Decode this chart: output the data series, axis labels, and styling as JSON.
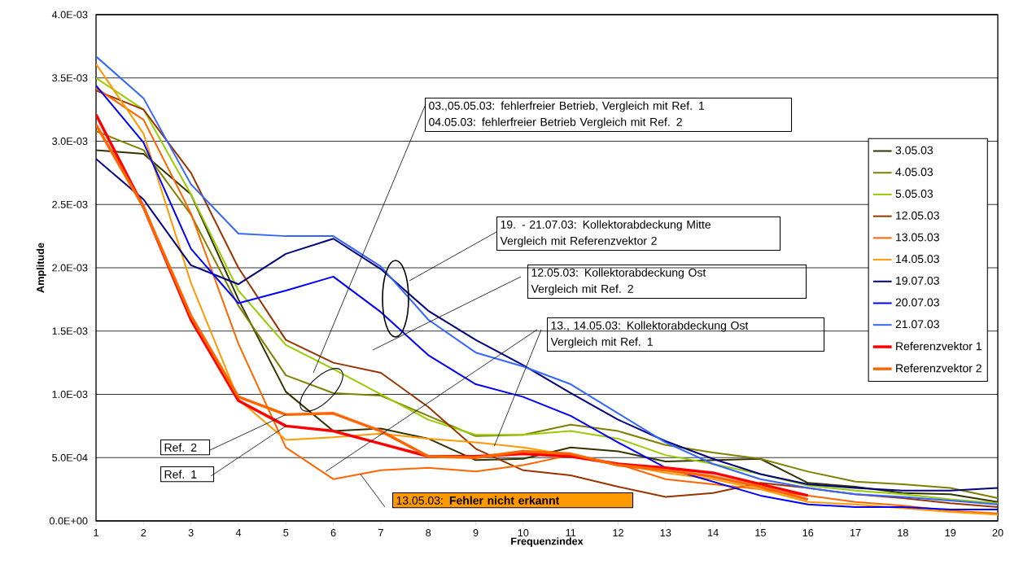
{
  "chart_data": {
    "type": "line",
    "xlabel": "Frequenzindex",
    "ylabel": "Amplitude",
    "x": [
      1,
      2,
      3,
      4,
      5,
      6,
      7,
      8,
      9,
      10,
      11,
      12,
      13,
      14,
      15,
      16,
      17,
      18,
      19,
      20
    ],
    "xlim": [
      1,
      20
    ],
    "xticks": [
      1,
      2,
      3,
      4,
      5,
      6,
      7,
      8,
      9,
      10,
      11,
      12,
      13,
      14,
      15,
      16,
      17,
      18,
      19,
      20
    ],
    "ylim": [
      0,
      0.004
    ],
    "yticks": [
      {
        "value": 0,
        "label": "0.0E+00"
      },
      {
        "value": 0.0005,
        "label": "5.0E-04"
      },
      {
        "value": 0.001,
        "label": "1.0E-03"
      },
      {
        "value": 0.0015,
        "label": "1.5E-03"
      },
      {
        "value": 0.002,
        "label": "2.0E-03"
      },
      {
        "value": 0.0025,
        "label": "2.5E-03"
      },
      {
        "value": 0.003,
        "label": "3.0E-03"
      },
      {
        "value": 0.0035,
        "label": "3.5E-03"
      },
      {
        "value": 0.004,
        "label": "4.0E-03"
      }
    ],
    "grid": "y",
    "legend": "right",
    "series": [
      {
        "name": "3.05.03",
        "color": "#333300",
        "values": [
          0.00293,
          0.0029,
          0.00258,
          0.00175,
          0.00102,
          0.00071,
          0.00073,
          0.00065,
          0.00048,
          0.00049,
          0.00058,
          0.00055,
          0.00047,
          0.00048,
          0.00049,
          0.0003,
          0.00027,
          0.00022,
          0.00021,
          0.00015
        ]
      },
      {
        "name": "4.05.03",
        "color": "#808000",
        "values": [
          0.00308,
          0.00293,
          0.00242,
          0.0017,
          0.00115,
          0.00101,
          0.00099,
          0.00083,
          0.00067,
          0.00068,
          0.00076,
          0.00071,
          0.0006,
          0.00054,
          0.00049,
          0.00039,
          0.00031,
          0.00029,
          0.00026,
          0.00018
        ]
      },
      {
        "name": "5.05.03",
        "color": "#99cc00",
        "values": [
          0.0035,
          0.00325,
          0.00258,
          0.00182,
          0.00139,
          0.0012,
          0.001,
          0.0008,
          0.00068,
          0.00068,
          0.00071,
          0.00065,
          0.00052,
          0.00045,
          0.00037,
          0.00028,
          0.00024,
          0.00021,
          0.00017,
          0.00014
        ]
      },
      {
        "name": "12.05.03",
        "color": "#993300",
        "values": [
          0.0034,
          0.00325,
          0.00275,
          0.002,
          0.00143,
          0.00125,
          0.00117,
          0.0009,
          0.00057,
          0.0004,
          0.00036,
          0.00027,
          0.00019,
          0.00022,
          0.0003,
          0.00026,
          0.00021,
          0.00018,
          0.00014,
          0.00011
        ]
      },
      {
        "name": "13.05.03",
        "color": "#ff6600",
        "values": [
          0.00342,
          0.00317,
          0.00243,
          0.0014,
          0.00058,
          0.00033,
          0.0004,
          0.00042,
          0.00039,
          0.00044,
          0.00052,
          0.00045,
          0.00033,
          0.00029,
          0.00025,
          0.0002,
          0.00015,
          0.00012,
          8e-05,
          6e-05
        ]
      },
      {
        "name": "14.05.03",
        "color": "#ff9900",
        "values": [
          0.00361,
          0.00306,
          0.00188,
          0.00096,
          0.00064,
          0.00066,
          0.00069,
          0.00065,
          0.00062,
          0.00058,
          0.00052,
          0.00045,
          0.00038,
          0.00033,
          0.00025,
          0.00015,
          0.00013,
          0.0001,
          7e-05,
          5e-05
        ]
      },
      {
        "name": "19.07.03",
        "color": "#000080",
        "values": [
          0.00286,
          0.00254,
          0.00202,
          0.00187,
          0.00211,
          0.00223,
          0.00199,
          0.00166,
          0.00143,
          0.00123,
          0.00101,
          0.0008,
          0.00063,
          0.00049,
          0.00037,
          0.00029,
          0.00026,
          0.00024,
          0.00024,
          0.00026
        ]
      },
      {
        "name": "20.07.03",
        "color": "#0000ff",
        "values": [
          0.00344,
          0.00299,
          0.00215,
          0.00172,
          0.00182,
          0.00193,
          0.00165,
          0.00131,
          0.00108,
          0.00098,
          0.00083,
          0.00062,
          0.00042,
          0.00031,
          0.0002,
          0.00013,
          0.00011,
          0.00011,
          9e-05,
          9e-05
        ]
      },
      {
        "name": "21.07.03",
        "color": "#3366ff",
        "values": [
          0.00367,
          0.00334,
          0.00266,
          0.00227,
          0.00225,
          0.00225,
          0.00201,
          0.00159,
          0.00133,
          0.00122,
          0.00108,
          0.00085,
          0.00062,
          0.00045,
          0.00033,
          0.00026,
          0.00021,
          0.00019,
          0.00016,
          0.00013
        ]
      },
      {
        "name": "Referenzvektor 1",
        "color": "#ff0000",
        "values": [
          0.00321,
          0.00248,
          0.00159,
          0.00095,
          0.00075,
          0.00071,
          0.00061,
          0.00051,
          0.00051,
          0.00053,
          0.00051,
          0.00045,
          0.00042,
          0.00038,
          0.00029,
          0.0002,
          null,
          null,
          null,
          null
        ]
      },
      {
        "name": "Referenzvektor 2",
        "color": "#ff6600",
        "values": [
          0.00313,
          0.00248,
          0.00162,
          0.00098,
          0.00084,
          0.00085,
          0.00071,
          0.00051,
          0.0005,
          0.00055,
          0.00053,
          0.00044,
          0.0004,
          0.00035,
          0.00027,
          0.00017,
          null,
          null,
          null,
          null
        ]
      }
    ],
    "annotations": [
      "03.,05.05.03: fehlerfreier Betrieb, Vergleich mit Ref. 1",
      "04.05.03: fehlerfreier Betrieb Vergleich mit Ref. 2",
      "19. - 21.07.03: Kollektorabdeckung Mitte",
      "Vergleich mit Referenzvektor 2",
      "12.05.03: Kollektorabdeckung Ost",
      "Vergleich mit Ref. 2",
      {
        "text": "13., 14.05.03: Kollektorabdeckung Ost",
        "x": 5.84,
        "y": 0.00039
      },
      {
        "text": "Vergleich mit Ref. 1",
        "x": 9.39,
        "y": 0.00059
      },
      {
        "text": "Ref. 2",
        "x": 5,
        "y": 0.00084
      },
      {
        "text": "Ref. 1",
        "x": 5,
        "y": 0.00075
      },
      {
        "text": "13.05.03: **Fehler nicht erkannt**",
        "x": 6.57,
        "y": 0.00037
      }
    ]
  }
}
